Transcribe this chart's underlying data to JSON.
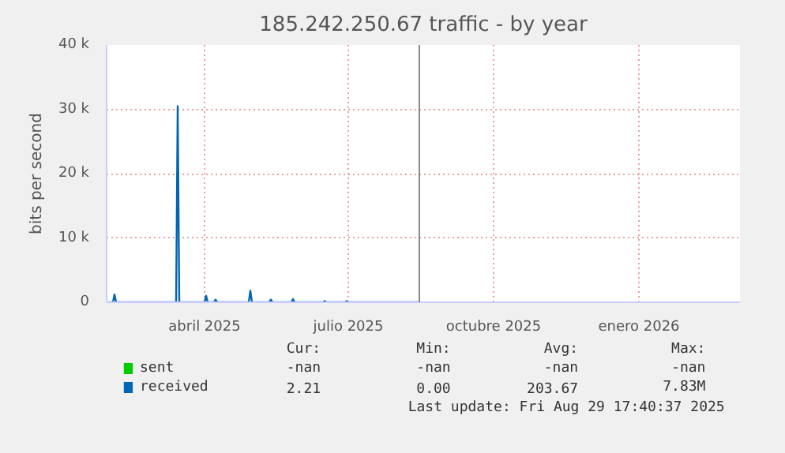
{
  "chart_data": {
    "type": "line",
    "title": "185.242.250.67 traffic - by year",
    "ylabel": "bits per second",
    "x": [
      "2025-02-13",
      "2025-02-16",
      "2025-02-17",
      "2025-02-18",
      "2025-03-28",
      "2025-03-29",
      "2025-03-30",
      "2025-04-15",
      "2025-04-16",
      "2025-04-17",
      "2025-04-21",
      "2025-04-22",
      "2025-04-23",
      "2025-05-13",
      "2025-05-14",
      "2025-05-15",
      "2025-05-26",
      "2025-05-27",
      "2025-05-28",
      "2025-06-09",
      "2025-06-10",
      "2025-06-11",
      "2025-06-29",
      "2025-06-30",
      "2025-07-01",
      "2025-07-13",
      "2025-07-14",
      "2025-07-15",
      "2025-08-29"
    ],
    "series": [
      {
        "name": "sent",
        "color": "#00cc00",
        "values": [
          null,
          null,
          null,
          null,
          null,
          null,
          null,
          null,
          null,
          null,
          null,
          null,
          null,
          null,
          null,
          null,
          null,
          null,
          null,
          null,
          null,
          null,
          null,
          null,
          null,
          null,
          null,
          null,
          null
        ]
      },
      {
        "name": "received",
        "color": "#0066b3",
        "values": [
          0,
          0,
          1200,
          0,
          0,
          30500,
          0,
          0,
          1000,
          0,
          0,
          400,
          0,
          0,
          1800,
          0,
          0,
          400,
          0,
          0,
          500,
          0,
          0,
          200,
          0,
          0,
          200,
          0,
          0
        ]
      }
    ],
    "xlim": [
      "2025-02-12",
      "2026-03-20"
    ],
    "xticks": [
      {
        "value": "2025-04-15",
        "label": "abril 2025"
      },
      {
        "value": "2025-07-15",
        "label": "julio 2025"
      },
      {
        "value": "2025-10-15",
        "label": "octubre 2025"
      },
      {
        "value": "2026-01-15",
        "label": "enero 2026"
      }
    ],
    "ylim": [
      0,
      40000
    ],
    "yticks": [
      {
        "value": 0,
        "label": "0"
      },
      {
        "value": 10000,
        "label": "10 k"
      },
      {
        "value": 20000,
        "label": "20 k"
      },
      {
        "value": 30000,
        "label": "30 k"
      },
      {
        "value": 40000,
        "label": "40 k"
      }
    ],
    "ref_lines": [
      {
        "axis": "x",
        "value": "2025-08-29",
        "color": "#888888"
      }
    ],
    "grid": true,
    "legend": "bottom",
    "annotations": [
      "Cur:",
      "Min:",
      "Avg:",
      "Max:",
      "-nan",
      "-nan",
      "-nan",
      "-nan",
      "2.21",
      "0.00",
      "203.67",
      "7.83M",
      "Last update: Fri Aug 29 17:40:37 2025"
    ]
  }
}
